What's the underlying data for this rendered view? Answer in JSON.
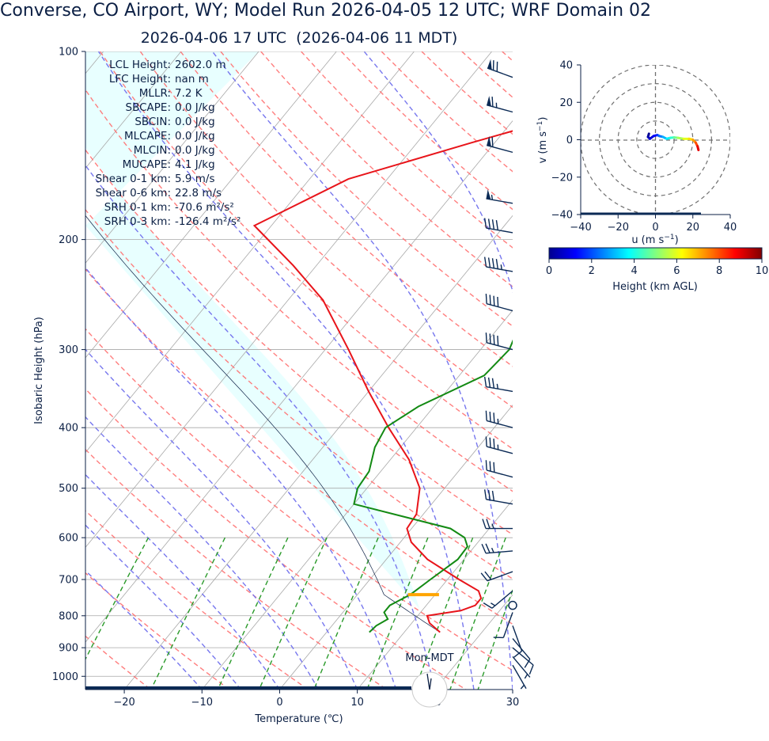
{
  "title": "Converse, CO Airport, WY; Model Run 2026-04-05 12 UTC; WRF Domain 02",
  "subtitle": "2026-04-06 17 UTC  (2026-04-06 11 MDT)",
  "indices": [
    {
      "label": "LCL Height:",
      "value": "2602.0 m"
    },
    {
      "label": "LFC Height:",
      "value": "nan m"
    },
    {
      "label": "MLLR:",
      "value": "7.2 K"
    },
    {
      "label": "SBCAPE:",
      "value": "0.0 J/kg"
    },
    {
      "label": "SBCIN:",
      "value": "0.0 J/kg"
    },
    {
      "label": "MLCAPE:",
      "value": "0.0 J/kg"
    },
    {
      "label": "MLCIN:",
      "value": "0.0 J/kg"
    },
    {
      "label": "MUCAPE:",
      "value": "4.1 J/kg"
    },
    {
      "label": "Shear 0-1 km:",
      "value": "5.9 m/s"
    },
    {
      "label": "Shear 0-6 km:",
      "value": "22.8 m/s"
    },
    {
      "label": "SRH 0-1 km:",
      "value": "-70.6 m²/s²"
    },
    {
      "label": "SRH 0-3 km:",
      "value": "-126.4 m²/s²"
    }
  ],
  "colors": {
    "temperature": "#e8141a",
    "dewpoint": "#138a13",
    "dry_adiabat": "#ff7070",
    "moist_adiabat": "#7777ee",
    "mixing_ratio": "#2a9a2a",
    "isotherm": "#a8a8a8",
    "cape_fill": "#e8ffff",
    "barb": "#0b2a55",
    "lcl_marker": "#ffa500"
  },
  "chart_data": [
    {
      "type": "line",
      "name": "skew-t",
      "xlabel": "Temperature (℃)",
      "ylabel": "Isobaric Height (hPa)",
      "xlim": [
        -25,
        30
      ],
      "ylim": [
        1050,
        100
      ],
      "y_scale": "log",
      "x_ticks": [
        -20,
        -10,
        0,
        10,
        20,
        30
      ],
      "x_tick_labels": [
        "−20",
        "−10",
        "0",
        "10",
        "20",
        "30"
      ],
      "y_ticks": [
        100,
        200,
        300,
        400,
        500,
        600,
        700,
        800,
        900,
        1000
      ],
      "y_tick_labels": [
        "100",
        "200",
        "300",
        "400",
        "500",
        "600",
        "700",
        "800",
        "900",
        "1000"
      ],
      "grid": true,
      "temperature": {
        "pressure": [
          850,
          822,
          800,
          785,
          770,
          750,
          730,
          700,
          650,
          610,
          580,
          550,
          500,
          450,
          400,
          350,
          300,
          250,
          220,
          190,
          160,
          140,
          120,
          110,
          100
        ],
        "values": [
          14.6,
          12.3,
          11.2,
          15.0,
          16.3,
          16.3,
          15.2,
          11.5,
          5.3,
          1.4,
          -0.6,
          -0.9,
          -3.2,
          -7.6,
          -13.6,
          -20.0,
          -27.0,
          -35.5,
          -43.0,
          -52.2,
          -45.0,
          -33.0,
          -18.5,
          -11.0,
          -5.0
        ]
      },
      "dewpoint": {
        "pressure": [
          850,
          830,
          810,
          790,
          770,
          740,
          700,
          650,
          620,
          600,
          580,
          530,
          500,
          470,
          430,
          400,
          370,
          330,
          300,
          260,
          230,
          200,
          170,
          150,
          120,
          100
        ],
        "values": [
          5.5,
          5.7,
          6.5,
          5.3,
          5.3,
          6.8,
          7.8,
          9.2,
          9.1,
          7.8,
          5.0,
          -10.0,
          -11.2,
          -11.5,
          -13.3,
          -14.0,
          -12.0,
          -6.8,
          -6.3,
          -8.3,
          -9.8,
          -9.0,
          -9.2,
          -9.0,
          -2.0,
          1.8
        ]
      },
      "lcl": {
        "pressure": 740,
        "t_range": [
          6.5,
          10.5
        ]
      },
      "wind_barbs": {
        "pressure": [
          110,
          125,
          145,
          175,
          195,
          225,
          260,
          300,
          350,
          400,
          440,
          480,
          530,
          580,
          630,
          680,
          730,
          790,
          830,
          870,
          900,
          930,
          960
        ],
        "speed_kt": [
          70,
          65,
          60,
          55,
          40,
          45,
          40,
          40,
          35,
          35,
          35,
          30,
          30,
          25,
          25,
          20,
          15,
          10,
          10,
          10,
          10,
          5,
          5
        ],
        "direction_deg": [
          290,
          285,
          285,
          280,
          280,
          280,
          285,
          285,
          280,
          285,
          285,
          285,
          280,
          270,
          265,
          250,
          230,
          200,
          160,
          140,
          130,
          140,
          150
        ]
      },
      "calm_wind_pressure": 770
    },
    {
      "type": "line",
      "name": "hodograph",
      "xlabel": "u (m s$^{-1}$)",
      "ylabel": "v (m s$^{-1}$)",
      "xlim": [
        -40,
        40
      ],
      "ylim": [
        -40,
        40
      ],
      "x_ticks": [
        -40,
        -20,
        0,
        20,
        40
      ],
      "x_tick_labels": [
        "−40",
        "−20",
        "0",
        "20",
        "40"
      ],
      "y_ticks": [
        -40,
        -20,
        0,
        20,
        40
      ],
      "y_tick_labels": [
        "−40",
        "−20",
        "0",
        "20",
        "40"
      ],
      "rings": [
        10,
        20,
        30,
        40
      ],
      "u": [
        -3.5,
        -4,
        -3,
        -1,
        1,
        2,
        4,
        6,
        8,
        10,
        12,
        15,
        18,
        20,
        21.5,
        22.5,
        23
      ],
      "v": [
        3.2,
        1.5,
        0.5,
        2,
        2.5,
        2,
        1.5,
        0.5,
        1,
        1.2,
        1,
        0.5,
        0.5,
        0,
        -1.5,
        -3.5,
        -5.5
      ],
      "height_km": [
        0,
        0.4,
        0.8,
        1.2,
        1.8,
        2.4,
        3,
        3.6,
        4.2,
        4.8,
        5.4,
        6,
        6.6,
        7.2,
        8,
        9,
        10
      ]
    }
  ],
  "colorbar": {
    "label": "Height (km AGL)",
    "min": 0,
    "max": 10,
    "ticks": [
      "0",
      "2",
      "4",
      "6",
      "8",
      "10"
    ]
  },
  "time_zone_label": "Mon-MDT"
}
